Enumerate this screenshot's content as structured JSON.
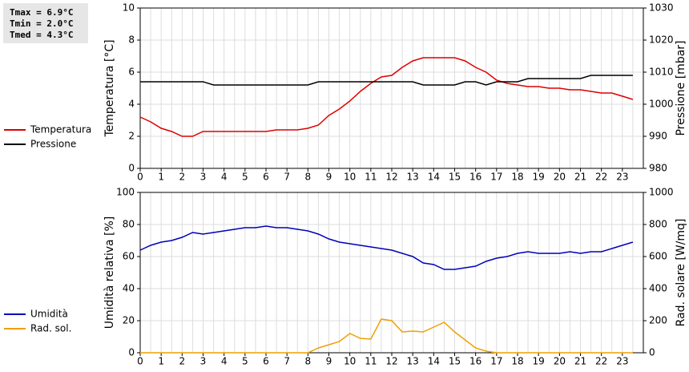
{
  "chart_data": [
    {
      "type": "line",
      "stats": [
        "Tmax =  6.9°C",
        "Tmin =  2.0°C",
        "Tmed =  4.3°C"
      ],
      "ylabel": "Temperatura [°C]",
      "y2label": "Pressione [mbar]",
      "x": [
        0,
        0.5,
        1,
        1.5,
        2,
        2.5,
        3,
        3.5,
        4,
        4.5,
        5,
        5.5,
        6,
        6.5,
        7,
        7.5,
        8,
        8.5,
        9,
        9.5,
        10,
        10.5,
        11,
        11.5,
        12,
        12.5,
        13,
        13.5,
        14,
        14.5,
        15,
        15.5,
        16,
        16.5,
        17,
        17.5,
        18,
        18.5,
        19,
        19.5,
        20,
        20.5,
        21,
        21.5,
        22,
        22.5,
        23,
        23.5
      ],
      "xlim": [
        0,
        24
      ],
      "xticks": [
        0,
        1,
        2,
        3,
        4,
        5,
        6,
        7,
        8,
        9,
        10,
        11,
        12,
        13,
        14,
        15,
        16,
        17,
        18,
        19,
        20,
        21,
        22,
        23
      ],
      "ylim": [
        0,
        10
      ],
      "yticks": [
        0,
        2,
        4,
        6,
        8,
        10
      ],
      "y2lim": [
        980,
        1030
      ],
      "y2ticks": [
        980,
        990,
        1000,
        1010,
        1020,
        1030
      ],
      "grid": true,
      "legend": "left",
      "series": [
        {
          "name": "Temperatura",
          "color": "#dd0000",
          "values": [
            3.2,
            2.9,
            2.5,
            2.3,
            2.0,
            2.0,
            2.3,
            2.3,
            2.3,
            2.3,
            2.3,
            2.3,
            2.3,
            2.4,
            2.4,
            2.4,
            2.5,
            2.7,
            3.3,
            3.7,
            4.2,
            4.8,
            5.3,
            5.7,
            5.8,
            6.3,
            6.7,
            6.9,
            6.9,
            6.9,
            6.9,
            6.7,
            6.3,
            6.0,
            5.5,
            5.3,
            5.2,
            5.1,
            5.1,
            5.0,
            5.0,
            4.9,
            4.9,
            4.8,
            4.7,
            4.7,
            4.5,
            4.3
          ]
        },
        {
          "name": "Pressione",
          "color": "#000000",
          "axis": "y2",
          "values": [
            1007,
            1007,
            1007,
            1007,
            1007,
            1007,
            1007,
            1006,
            1006,
            1006,
            1006,
            1006,
            1006,
            1006,
            1006,
            1006,
            1006,
            1007,
            1007,
            1007,
            1007,
            1007,
            1007,
            1007,
            1007,
            1007,
            1007,
            1006,
            1006,
            1006,
            1006,
            1007,
            1007,
            1006,
            1007,
            1007,
            1007,
            1008,
            1008,
            1008,
            1008,
            1008,
            1008,
            1009,
            1009,
            1009,
            1009,
            1009
          ]
        }
      ]
    },
    {
      "type": "line",
      "ylabel": "Umidità relativa [%]",
      "y2label": "Rad. solare [W/mq]",
      "x": [
        0,
        0.5,
        1,
        1.5,
        2,
        2.5,
        3,
        3.5,
        4,
        4.5,
        5,
        5.5,
        6,
        6.5,
        7,
        7.5,
        8,
        8.5,
        9,
        9.5,
        10,
        10.5,
        11,
        11.5,
        12,
        12.5,
        13,
        13.5,
        14,
        14.5,
        15,
        15.5,
        16,
        16.5,
        17,
        17.5,
        18,
        18.5,
        19,
        19.5,
        20,
        20.5,
        21,
        21.5,
        22,
        22.5,
        23,
        23.5
      ],
      "xlim": [
        0,
        24
      ],
      "xticks": [
        0,
        1,
        2,
        3,
        4,
        5,
        6,
        7,
        8,
        9,
        10,
        11,
        12,
        13,
        14,
        15,
        16,
        17,
        18,
        19,
        20,
        21,
        22,
        23
      ],
      "ylim": [
        0,
        100
      ],
      "yticks": [
        0,
        20,
        40,
        60,
        80,
        100
      ],
      "y2lim": [
        0,
        1000
      ],
      "y2ticks": [
        0,
        200,
        400,
        600,
        800,
        1000
      ],
      "grid": true,
      "legend": "left",
      "series": [
        {
          "name": "Umidità",
          "color": "#0000bb",
          "values": [
            64,
            67,
            69,
            70,
            72,
            75,
            74,
            75,
            76,
            77,
            78,
            78,
            79,
            78,
            78,
            77,
            76,
            74,
            71,
            69,
            68,
            67,
            66,
            65,
            64,
            62,
            60,
            56,
            55,
            52,
            52,
            53,
            54,
            57,
            59,
            60,
            62,
            63,
            62,
            62,
            62,
            63,
            62,
            63,
            63,
            65,
            67,
            69
          ]
        },
        {
          "name": "Rad. sol.",
          "color": "#f0a000",
          "axis": "y2",
          "values": [
            0,
            0,
            0,
            0,
            0,
            0,
            0,
            0,
            0,
            0,
            0,
            0,
            0,
            0,
            0,
            0,
            0,
            30,
            50,
            70,
            120,
            90,
            85,
            210,
            200,
            130,
            135,
            130,
            160,
            190,
            130,
            80,
            30,
            10,
            0,
            0,
            0,
            0,
            0,
            0,
            0,
            0,
            0,
            0,
            0,
            0,
            0,
            0
          ]
        }
      ]
    }
  ]
}
